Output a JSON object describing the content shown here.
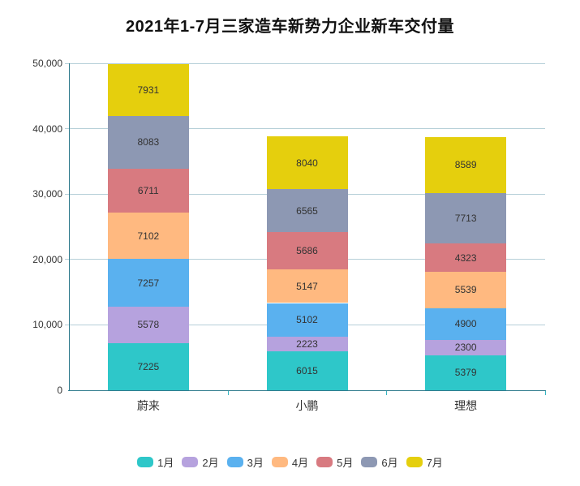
{
  "title": "2021年1-7月三家造车新势力企业新车交付量",
  "chart_data": {
    "type": "bar",
    "stacked": true,
    "title": "2021年1-7月三家造车新势力企业新车交付量",
    "categories": [
      "蔚来",
      "小鹏",
      "理想"
    ],
    "series": [
      {
        "name": "1月",
        "color": "#2ec7c9",
        "values": [
          7225,
          6015,
          5379
        ]
      },
      {
        "name": "2月",
        "color": "#b6a2de",
        "values": [
          5578,
          2223,
          2300
        ]
      },
      {
        "name": "3月",
        "color": "#5ab1ef",
        "values": [
          7257,
          5102,
          4900
        ]
      },
      {
        "name": "4月",
        "color": "#ffb980",
        "values": [
          7102,
          5147,
          5539
        ]
      },
      {
        "name": "5月",
        "color": "#d87a80",
        "values": [
          6711,
          5686,
          4323
        ]
      },
      {
        "name": "6月",
        "color": "#8d98b3",
        "values": [
          8083,
          6565,
          7713
        ]
      },
      {
        "name": "7月",
        "color": "#e5cf0d",
        "values": [
          7931,
          8040,
          8589
        ]
      }
    ],
    "totals": [
      49887,
      38778,
      38743
    ],
    "ylim": [
      0,
      50000
    ],
    "y_ticks": [
      "0",
      "10,000",
      "20,000",
      "30,000",
      "40,000",
      "50,000"
    ],
    "xlabel": "",
    "ylabel": "",
    "grid": true,
    "value_labels": true,
    "legend_position": "bottom"
  },
  "colors": {
    "background": "#ffffff",
    "axis_line": "#2f7b8d",
    "grid_line": "#b5cfd8",
    "category_tick": "#35b6c2",
    "text": "#333333",
    "title_text": "#111111"
  }
}
